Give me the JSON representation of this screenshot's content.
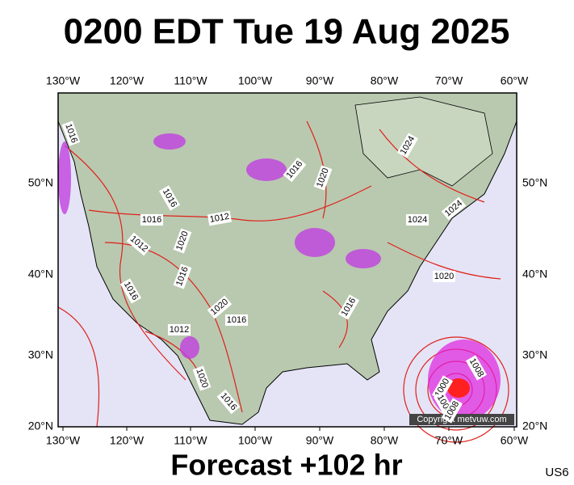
{
  "title": "0200 EDT Tue 19 Aug 2025",
  "longitude_labels": [
    "130°W",
    "120°W",
    "110°W",
    "100°W",
    "90°W",
    "80°W",
    "70°W",
    "60°W"
  ],
  "latitude_labels": [
    "50°N",
    "40°N",
    "30°N",
    "20°N"
  ],
  "isobar_labels": [
    "1016",
    "1024",
    "1016",
    "1020",
    "1016",
    "1016",
    "1012",
    "1024",
    "1024",
    "1012",
    "1020",
    "1016",
    "1020",
    "1016",
    "1020",
    "1016",
    "1012",
    "1016",
    "1008",
    "1000",
    "1004",
    "1008",
    "1020",
    "1016"
  ],
  "copyright": "Copyright metvuw.com",
  "footer": "Forecast +102 hr",
  "region_code": "US6"
}
